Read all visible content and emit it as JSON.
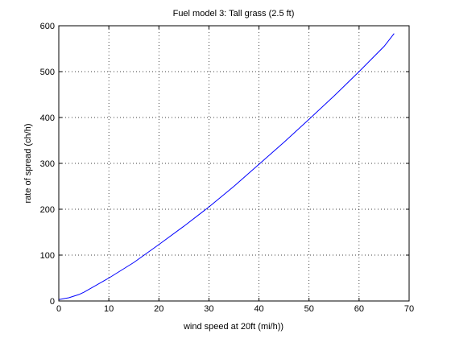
{
  "chart_data": {
    "type": "line",
    "title": "Fuel model 3: Tall grass (2.5 ft)",
    "x_label": "wind speed at 20ft (mi/h))",
    "y_label": "rate of spread (ch/h)",
    "x": [
      0,
      2,
      4,
      5,
      10,
      15,
      20,
      25,
      30,
      35,
      40,
      45,
      50,
      55,
      60,
      65,
      67
    ],
    "series": [
      {
        "color": "#0000ff",
        "values": [
          3,
          7,
          14,
          19,
          50,
          84,
          123,
          163,
          205,
          250,
          298,
          346,
          396,
          447,
          500,
          555,
          583
        ]
      }
    ],
    "xlim": [
      0,
      70
    ],
    "xticks": [
      0,
      10,
      20,
      30,
      40,
      50,
      60,
      70
    ],
    "ylim": [
      0,
      600
    ],
    "yticks": [
      0,
      100,
      200,
      300,
      400,
      500,
      600
    ],
    "grid": true
  }
}
